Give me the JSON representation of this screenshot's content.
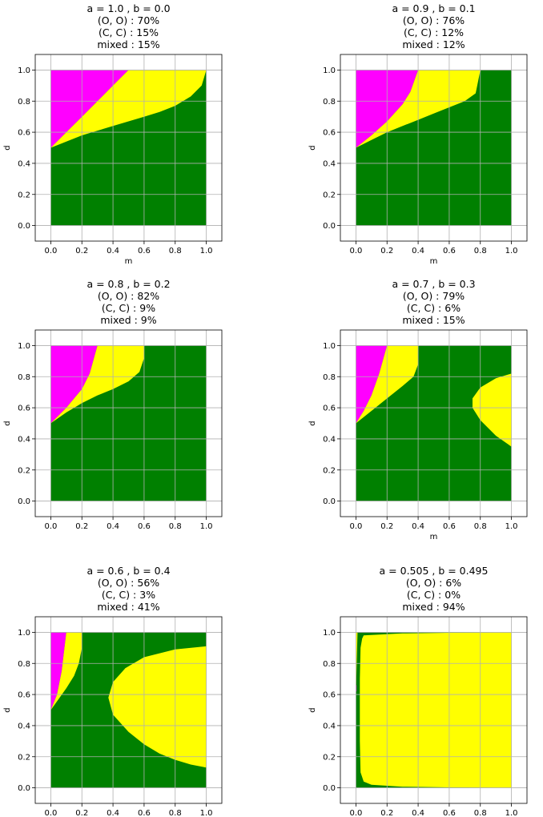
{
  "colors": {
    "outcome_O_O": "#008000",
    "outcome_C_C": "#ff00ff",
    "outcome_mixed": "#ffff00",
    "grid": "#b0b0b0",
    "frame": "#000000"
  },
  "chart_data": [
    {
      "type": "heatmap",
      "title_lines": [
        "a = 1.0  ,   b = 0.0",
        "(O, O) : 70%",
        "(C, C) : 15%",
        "mixed : 15%"
      ],
      "params": {
        "a": 1.0,
        "b": 0.0
      },
      "shares": {
        "O_O": 70,
        "C_C": 15,
        "mixed": 15
      },
      "xlabel": "m",
      "ylabel": "d",
      "xlim": [
        -0.1,
        1.1
      ],
      "ylim": [
        -0.1,
        1.1
      ],
      "xticks": [
        "0.0",
        "0.2",
        "0.4",
        "0.6",
        "0.8",
        "1.0"
      ],
      "yticks": [
        "0.0",
        "0.2",
        "0.4",
        "0.6",
        "0.8",
        "1.0"
      ],
      "grid": true,
      "regions": [
        {
          "outcome": "C_C",
          "boundary": [
            [
              0,
              0.5
            ],
            [
              0.1,
              0.6
            ],
            [
              0.2,
              0.7
            ],
            [
              0.3,
              0.8
            ],
            [
              0.4,
              0.9
            ],
            [
              0.5,
              1.0
            ],
            [
              0,
              1.0
            ]
          ]
        },
        {
          "outcome": "mixed",
          "boundary": [
            [
              0,
              0.5
            ],
            [
              0.1,
              0.54
            ],
            [
              0.2,
              0.58
            ],
            [
              0.3,
              0.61
            ],
            [
              0.4,
              0.64
            ],
            [
              0.5,
              0.67
            ],
            [
              0.6,
              0.7
            ],
            [
              0.7,
              0.73
            ],
            [
              0.8,
              0.77
            ],
            [
              0.9,
              0.83
            ],
            [
              0.97,
              0.9
            ],
            [
              1.0,
              1.0
            ],
            [
              0.5,
              1.0
            ],
            [
              0.4,
              0.9
            ],
            [
              0.3,
              0.8
            ],
            [
              0.2,
              0.7
            ],
            [
              0.1,
              0.6
            ]
          ]
        }
      ]
    },
    {
      "type": "heatmap",
      "title_lines": [
        "a = 0.9  ,   b = 0.1",
        "(O, O) : 76%",
        "(C, C) : 12%",
        "mixed : 12%"
      ],
      "params": {
        "a": 0.9,
        "b": 0.1
      },
      "shares": {
        "O_O": 76,
        "C_C": 12,
        "mixed": 12
      },
      "xlabel": "m",
      "ylabel": "d",
      "xlim": [
        -0.1,
        1.1
      ],
      "ylim": [
        -0.1,
        1.1
      ],
      "xticks": [
        "0.0",
        "0.2",
        "0.4",
        "0.6",
        "0.8",
        "1.0"
      ],
      "yticks": [
        "0.0",
        "0.2",
        "0.4",
        "0.6",
        "0.8",
        "1.0"
      ],
      "grid": true,
      "regions": [
        {
          "outcome": "C_C",
          "boundary": [
            [
              0,
              0.5
            ],
            [
              0.1,
              0.58
            ],
            [
              0.2,
              0.67
            ],
            [
              0.3,
              0.78
            ],
            [
              0.35,
              0.86
            ],
            [
              0.4,
              1.0
            ],
            [
              0,
              1.0
            ]
          ]
        },
        {
          "outcome": "mixed",
          "boundary": [
            [
              0,
              0.5
            ],
            [
              0.1,
              0.55
            ],
            [
              0.2,
              0.6
            ],
            [
              0.3,
              0.64
            ],
            [
              0.4,
              0.68
            ],
            [
              0.5,
              0.72
            ],
            [
              0.6,
              0.76
            ],
            [
              0.7,
              0.8
            ],
            [
              0.77,
              0.85
            ],
            [
              0.8,
              1.0
            ],
            [
              0.4,
              1.0
            ],
            [
              0.35,
              0.86
            ],
            [
              0.3,
              0.78
            ],
            [
              0.2,
              0.67
            ],
            [
              0.1,
              0.58
            ]
          ]
        }
      ]
    },
    {
      "type": "heatmap",
      "title_lines": [
        "a = 0.8  ,   b = 0.2",
        "(O, O) : 82%",
        "(C, C) : 9%",
        "mixed : 9%"
      ],
      "params": {
        "a": 0.8,
        "b": 0.2
      },
      "shares": {
        "O_O": 82,
        "C_C": 9,
        "mixed": 9
      },
      "xlabel": "",
      "ylabel": "d",
      "xlim": [
        -0.1,
        1.1
      ],
      "ylim": [
        -0.1,
        1.1
      ],
      "xticks": [
        "0.0",
        "0.2",
        "0.4",
        "0.6",
        "0.8",
        "1.0"
      ],
      "yticks": [
        "0.0",
        "0.2",
        "0.4",
        "0.6",
        "0.8",
        "1.0"
      ],
      "grid": true,
      "regions": [
        {
          "outcome": "C_C",
          "boundary": [
            [
              0,
              0.5
            ],
            [
              0.1,
              0.6
            ],
            [
              0.2,
              0.72
            ],
            [
              0.25,
              0.82
            ],
            [
              0.3,
              1.0
            ],
            [
              0,
              1.0
            ]
          ]
        },
        {
          "outcome": "mixed",
          "boundary": [
            [
              0,
              0.5
            ],
            [
              0.1,
              0.57
            ],
            [
              0.2,
              0.63
            ],
            [
              0.3,
              0.68
            ],
            [
              0.4,
              0.72
            ],
            [
              0.5,
              0.77
            ],
            [
              0.57,
              0.83
            ],
            [
              0.6,
              0.92
            ],
            [
              0.6,
              1.0
            ],
            [
              0.3,
              1.0
            ],
            [
              0.25,
              0.82
            ],
            [
              0.2,
              0.72
            ],
            [
              0.1,
              0.6
            ]
          ]
        }
      ]
    },
    {
      "type": "heatmap",
      "title_lines": [
        "a = 0.7  ,   b = 0.3",
        "(O, O) : 79%",
        "(C, C) : 6%",
        "mixed : 15%"
      ],
      "params": {
        "a": 0.7,
        "b": 0.3
      },
      "shares": {
        "O_O": 79,
        "C_C": 6,
        "mixed": 15
      },
      "xlabel": "m",
      "ylabel": "d",
      "xlim": [
        -0.1,
        1.1
      ],
      "ylim": [
        -0.1,
        1.1
      ],
      "xticks": [
        "0.0",
        "0.2",
        "0.4",
        "0.6",
        "0.8",
        "1.0"
      ],
      "yticks": [
        "0.0",
        "0.2",
        "0.4",
        "0.6",
        "0.8",
        "1.0"
      ],
      "grid": true,
      "regions": [
        {
          "outcome": "C_C",
          "boundary": [
            [
              0,
              0.5
            ],
            [
              0.05,
              0.58
            ],
            [
              0.1,
              0.68
            ],
            [
              0.15,
              0.82
            ],
            [
              0.2,
              1.0
            ],
            [
              0,
              1.0
            ]
          ]
        },
        {
          "outcome": "mixed",
          "boundary": [
            [
              0,
              0.5
            ],
            [
              0.1,
              0.58
            ],
            [
              0.2,
              0.66
            ],
            [
              0.3,
              0.74
            ],
            [
              0.37,
              0.8
            ],
            [
              0.4,
              0.88
            ],
            [
              0.4,
              1.0
            ],
            [
              0.2,
              1.0
            ],
            [
              0.15,
              0.82
            ],
            [
              0.1,
              0.68
            ],
            [
              0.05,
              0.58
            ]
          ]
        },
        {
          "outcome": "mixed",
          "boundary": [
            [
              1.0,
              0.82
            ],
            [
              0.9,
              0.79
            ],
            [
              0.8,
              0.73
            ],
            [
              0.75,
              0.66
            ],
            [
              0.75,
              0.6
            ],
            [
              0.8,
              0.52
            ],
            [
              0.9,
              0.42
            ],
            [
              1.0,
              0.35
            ]
          ]
        }
      ]
    },
    {
      "type": "heatmap",
      "title_lines": [
        "a = 0.6  ,   b = 0.4",
        "(O, O) : 56%",
        "(C, C) : 3%",
        "mixed : 41%"
      ],
      "params": {
        "a": 0.6,
        "b": 0.4
      },
      "shares": {
        "O_O": 56,
        "C_C": 3,
        "mixed": 41
      },
      "xlabel": "",
      "ylabel": "d",
      "xlim": [
        -0.1,
        1.1
      ],
      "ylim": [
        -0.1,
        1.1
      ],
      "xticks": [
        "0.0",
        "0.2",
        "0.4",
        "0.6",
        "0.8",
        "1.0"
      ],
      "yticks": [
        "0.0",
        "0.2",
        "0.4",
        "0.6",
        "0.8",
        "1.0"
      ],
      "grid": true,
      "regions": [
        {
          "outcome": "C_C",
          "boundary": [
            [
              0,
              0.5
            ],
            [
              0.04,
              0.6
            ],
            [
              0.07,
              0.75
            ],
            [
              0.1,
              1.0
            ],
            [
              0,
              1.0
            ]
          ]
        },
        {
          "outcome": "mixed",
          "boundary": [
            [
              0,
              0.5
            ],
            [
              0.05,
              0.57
            ],
            [
              0.1,
              0.64
            ],
            [
              0.15,
              0.72
            ],
            [
              0.18,
              0.8
            ],
            [
              0.2,
              0.9
            ],
            [
              0.2,
              1.0
            ],
            [
              0.1,
              1.0
            ],
            [
              0.07,
              0.75
            ],
            [
              0.04,
              0.6
            ]
          ]
        },
        {
          "outcome": "mixed",
          "boundary": [
            [
              1.0,
              0.91
            ],
            [
              0.8,
              0.89
            ],
            [
              0.6,
              0.84
            ],
            [
              0.48,
              0.77
            ],
            [
              0.4,
              0.68
            ],
            [
              0.37,
              0.58
            ],
            [
              0.4,
              0.47
            ],
            [
              0.5,
              0.36
            ],
            [
              0.6,
              0.28
            ],
            [
              0.7,
              0.22
            ],
            [
              0.8,
              0.18
            ],
            [
              0.9,
              0.15
            ],
            [
              1.0,
              0.13
            ]
          ]
        }
      ]
    },
    {
      "type": "heatmap",
      "title_lines": [
        "a = 0.505  ,   b = 0.495",
        "(O, O) : 6%",
        "(C, C) : 0%",
        "mixed : 94%"
      ],
      "params": {
        "a": 0.505,
        "b": 0.495
      },
      "shares": {
        "O_O": 6,
        "C_C": 0,
        "mixed": 94
      },
      "xlabel": "",
      "ylabel": "d",
      "xlim": [
        -0.1,
        1.1
      ],
      "ylim": [
        -0.1,
        1.1
      ],
      "xticks": [
        "0.0",
        "0.2",
        "0.4",
        "0.6",
        "0.8",
        "1.0"
      ],
      "yticks": [
        "0.0",
        "0.2",
        "0.4",
        "0.6",
        "0.8",
        "1.0"
      ],
      "grid": true,
      "regions": [
        {
          "outcome": "mixed",
          "boundary": [
            [
              0,
              0.6
            ],
            [
              0.005,
              0.8
            ],
            [
              0.01,
              1.0
            ],
            [
              0,
              1.0
            ]
          ]
        },
        {
          "outcome": "C_C",
          "boundary": [
            [
              0,
              0.62
            ],
            [
              0.004,
              0.62
            ],
            [
              0.004,
              0.66
            ],
            [
              0,
              0.66
            ]
          ]
        },
        {
          "outcome": "mixed",
          "boundary": [
            [
              0.05,
              0.98
            ],
            [
              0.3,
              0.993
            ],
            [
              0.6,
              0.997
            ],
            [
              1.0,
              1.0
            ],
            [
              1.0,
              0.0
            ],
            [
              0.6,
              0.003
            ],
            [
              0.3,
              0.007
            ],
            [
              0.1,
              0.02
            ],
            [
              0.05,
              0.04
            ],
            [
              0.03,
              0.1
            ],
            [
              0.025,
              0.3
            ],
            [
              0.025,
              0.5
            ],
            [
              0.025,
              0.7
            ],
            [
              0.03,
              0.9
            ],
            [
              0.04,
              0.96
            ]
          ]
        }
      ]
    }
  ]
}
